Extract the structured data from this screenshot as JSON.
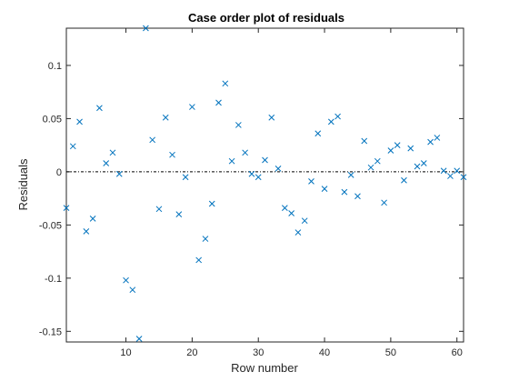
{
  "chart_data": {
    "type": "scatter",
    "title": "Case order plot of residuals",
    "xlabel": "Row number",
    "ylabel": "Residuals",
    "xlim": [
      1,
      61
    ],
    "ylim": [
      -0.16,
      0.135
    ],
    "xticks": [
      10,
      20,
      30,
      40,
      50,
      60
    ],
    "yticks": [
      0.1,
      0.05,
      0,
      -0.05,
      -0.1,
      -0.15
    ],
    "ytick_labels": [
      "0.1",
      "0.05",
      "0",
      "-0.05",
      "-0.1",
      "-0.15"
    ],
    "reference_line": 0,
    "marker": "x",
    "marker_color": "#0072BD",
    "box": true,
    "grid": false,
    "x": [
      1,
      2,
      3,
      4,
      5,
      6,
      7,
      8,
      9,
      10,
      11,
      12,
      13,
      14,
      15,
      16,
      17,
      18,
      19,
      20,
      21,
      22,
      23,
      24,
      25,
      26,
      27,
      28,
      29,
      30,
      31,
      32,
      33,
      34,
      35,
      36,
      37,
      38,
      39,
      40,
      41,
      42,
      43,
      44,
      45,
      46,
      47,
      48,
      49,
      50,
      51,
      52,
      53,
      54,
      55,
      56,
      57,
      58,
      59,
      60,
      61
    ],
    "y": [
      -0.034,
      0.024,
      0.047,
      -0.056,
      -0.044,
      0.06,
      0.008,
      0.018,
      -0.002,
      -0.102,
      -0.111,
      -0.157,
      0.135,
      0.03,
      -0.035,
      0.051,
      0.016,
      -0.04,
      -0.005,
      0.061,
      -0.083,
      -0.063,
      -0.03,
      0.065,
      0.083,
      0.01,
      0.044,
      0.018,
      -0.002,
      -0.005,
      0.011,
      0.051,
      0.003,
      -0.034,
      -0.039,
      -0.057,
      -0.046,
      -0.009,
      0.036,
      -0.016,
      0.047,
      0.052,
      -0.019,
      -0.003,
      -0.023,
      0.029,
      0.004,
      0.01,
      -0.029,
      0.02,
      0.025,
      -0.008,
      0.022,
      0.005,
      0.008,
      0.028,
      0.032,
      0.001,
      -0.004,
      0.001,
      -0.005
    ]
  }
}
